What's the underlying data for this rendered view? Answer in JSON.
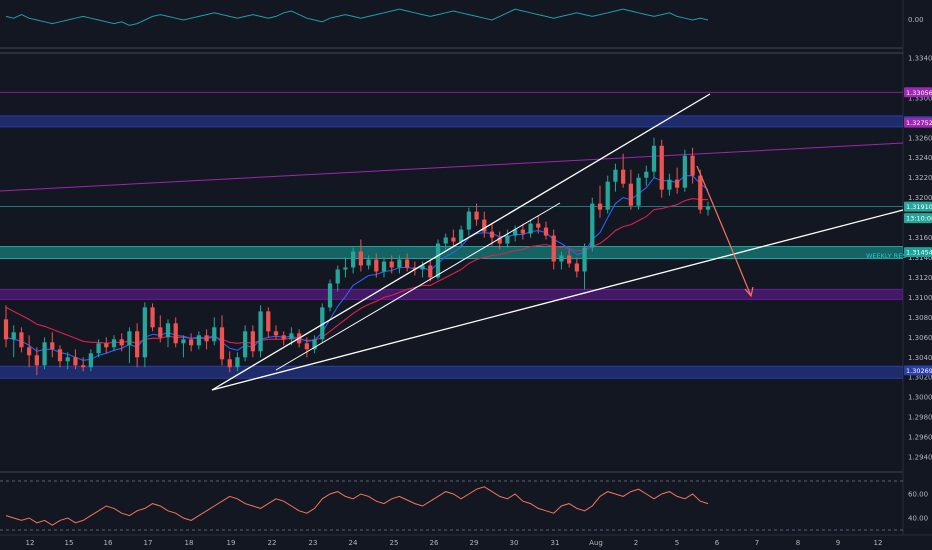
{
  "colors": {
    "background": "#131722",
    "grid": "#1e222d",
    "up": "#26a69a",
    "down": "#ef5350",
    "bluezone": "#2a3ea8",
    "purplezone": "#6a1b9a",
    "tealzone": "#1aa39a",
    "ema_fast": "#2962ff",
    "ema_slow": "#e0204a",
    "trendline": "#ffffff",
    "channel_purple": "#9c27b0",
    "arrow": "#f7725a",
    "price_tag": "#26a69a",
    "purple_tag": "#9c27b0",
    "blue_tag": "#2a3ea8",
    "oscillator_top": "#1e9fa8",
    "oscillator_bottom": "#f7725a"
  },
  "chart_data": {
    "type": "candlestick",
    "symbol": "GBPUSD",
    "ylim": [
      1.2925,
      1.335
    ],
    "price_axis_ticks": [
      "1.33400",
      "1.33000",
      "1.32600",
      "1.32400",
      "1.32200",
      "1.32000",
      "1.31600",
      "1.31400",
      "1.31200",
      "1.31000",
      "1.30800",
      "1.30600",
      "1.30400",
      "1.30200",
      "1.30000",
      "1.29800",
      "1.29600",
      "1.29400"
    ],
    "price_axis_values": [
      1.334,
      1.33,
      1.326,
      1.324,
      1.322,
      1.32,
      1.316,
      1.314,
      1.312,
      1.31,
      1.308,
      1.306,
      1.304,
      1.302,
      1.3,
      1.298,
      1.296,
      1.294
    ],
    "time_axis_labels": [
      "12",
      "15",
      "16",
      "17",
      "18",
      "19",
      "22",
      "23",
      "24",
      "25",
      "26",
      "29",
      "30",
      "31",
      "Aug",
      "2",
      "5",
      "6",
      "7",
      "8",
      "9",
      "12"
    ],
    "price_tags": [
      {
        "label": "1.33056",
        "value": 1.33056,
        "color": "#9c27b0"
      },
      {
        "label": "1.32767",
        "value": 1.32767,
        "color": "#2a3ea8"
      },
      {
        "label": "1.32752",
        "value": 1.32752,
        "color": "#9c27b0"
      },
      {
        "label": "1.31910",
        "value": 1.3191,
        "color": "#26a69a"
      },
      {
        "label": "13:10:06",
        "value": 1.31795,
        "color": "#26a69a"
      },
      {
        "label": "1.31454",
        "value": 1.31454,
        "color": "#1aa39a"
      },
      {
        "label": "1.30269",
        "value": 1.30269,
        "color": "#2a3ea8"
      }
    ],
    "zones": [
      {
        "name": "blue-resistance-zone",
        "from": 1.3273,
        "to": 1.328,
        "color": "#2a3ea8"
      },
      {
        "name": "weekly-res-zone",
        "from": 1.3141,
        "to": 1.3149,
        "color": "#1aa39a"
      },
      {
        "name": "purple-support-zone",
        "from": 1.31,
        "to": 1.3106,
        "color": "#6a1b9a"
      },
      {
        "name": "blue-support-zone",
        "from": 1.3021,
        "to": 1.3029,
        "color": "#2a3ea8"
      }
    ],
    "horizontal_lines": [
      {
        "name": "top-line",
        "value": 1.3345
      },
      {
        "name": "purple-level",
        "value": 1.33056
      },
      {
        "name": "current-price-line",
        "value": 1.3191
      }
    ],
    "annotations": [
      {
        "text": "WEEKLY RES",
        "value": 1.31454
      }
    ],
    "candles": [
      [
        1.3078,
        1.3092,
        1.305,
        1.3058
      ],
      [
        1.3058,
        1.3072,
        1.304,
        1.3065
      ],
      [
        1.3065,
        1.307,
        1.3045,
        1.305
      ],
      [
        1.305,
        1.3062,
        1.303,
        1.3042
      ],
      [
        1.3042,
        1.305,
        1.3022,
        1.3032
      ],
      [
        1.3032,
        1.306,
        1.3028,
        1.3055
      ],
      [
        1.3055,
        1.3065,
        1.304,
        1.3048
      ],
      [
        1.3048,
        1.3052,
        1.303,
        1.3036
      ],
      [
        1.3036,
        1.3045,
        1.3028,
        1.304
      ],
      [
        1.304,
        1.3048,
        1.3028,
        1.3032
      ],
      [
        1.3032,
        1.304,
        1.3026,
        1.303
      ],
      [
        1.303,
        1.3048,
        1.3026,
        1.3044
      ],
      [
        1.3044,
        1.3058,
        1.304,
        1.3054
      ],
      [
        1.3054,
        1.306,
        1.3044,
        1.305
      ],
      [
        1.305,
        1.3062,
        1.3046,
        1.3058
      ],
      [
        1.3058,
        1.3064,
        1.3046,
        1.3052
      ],
      [
        1.3052,
        1.307,
        1.3034,
        1.3066
      ],
      [
        1.3066,
        1.3074,
        1.303,
        1.304
      ],
      [
        1.304,
        1.3095,
        1.303,
        1.309
      ],
      [
        1.309,
        1.3094,
        1.3066,
        1.307
      ],
      [
        1.307,
        1.3082,
        1.3055,
        1.306
      ],
      [
        1.306,
        1.3078,
        1.305,
        1.3074
      ],
      [
        1.3074,
        1.308,
        1.305,
        1.3054
      ],
      [
        1.3054,
        1.3062,
        1.304,
        1.3058
      ],
      [
        1.3058,
        1.3064,
        1.3046,
        1.3052
      ],
      [
        1.3052,
        1.3066,
        1.3048,
        1.3062
      ],
      [
        1.3062,
        1.3068,
        1.3048,
        1.3056
      ],
      [
        1.3056,
        1.308,
        1.3052,
        1.307
      ],
      [
        1.307,
        1.3082,
        1.3032,
        1.3038
      ],
      [
        1.3038,
        1.3046,
        1.3025,
        1.303
      ],
      [
        1.303,
        1.3045,
        1.3026,
        1.304
      ],
      [
        1.304,
        1.3072,
        1.3036,
        1.3066
      ],
      [
        1.3066,
        1.3072,
        1.304,
        1.3046
      ],
      [
        1.3046,
        1.3092,
        1.304,
        1.3086
      ],
      [
        1.3086,
        1.309,
        1.306,
        1.3066
      ],
      [
        1.3066,
        1.3072,
        1.3058,
        1.3062
      ],
      [
        1.3062,
        1.3066,
        1.3052,
        1.3058
      ],
      [
        1.3058,
        1.307,
        1.3052,
        1.3064
      ],
      [
        1.3064,
        1.3068,
        1.305,
        1.3054
      ],
      [
        1.3054,
        1.306,
        1.304,
        1.3048
      ],
      [
        1.3048,
        1.3062,
        1.3044,
        1.3058
      ],
      [
        1.3058,
        1.3094,
        1.3054,
        1.309
      ],
      [
        1.309,
        1.3118,
        1.3086,
        1.3114
      ],
      [
        1.3114,
        1.3132,
        1.3106,
        1.3128
      ],
      [
        1.3128,
        1.314,
        1.312,
        1.313
      ],
      [
        1.313,
        1.315,
        1.3124,
        1.3146
      ],
      [
        1.3146,
        1.3158,
        1.3126,
        1.3132
      ],
      [
        1.3132,
        1.3142,
        1.3128,
        1.3138
      ],
      [
        1.3138,
        1.3144,
        1.312,
        1.3126
      ],
      [
        1.3126,
        1.314,
        1.312,
        1.3136
      ],
      [
        1.3136,
        1.3142,
        1.3124,
        1.313
      ],
      [
        1.313,
        1.3142,
        1.3124,
        1.3138
      ],
      [
        1.3138,
        1.3144,
        1.3126,
        1.313
      ],
      [
        1.313,
        1.3136,
        1.3122,
        1.3128
      ],
      [
        1.3128,
        1.3136,
        1.312,
        1.3132
      ],
      [
        1.3132,
        1.3138,
        1.3116,
        1.312
      ],
      [
        1.312,
        1.3158,
        1.3118,
        1.3154
      ],
      [
        1.3154,
        1.3164,
        1.3148,
        1.316
      ],
      [
        1.316,
        1.3168,
        1.315,
        1.3156
      ],
      [
        1.3156,
        1.3172,
        1.315,
        1.3168
      ],
      [
        1.3168,
        1.319,
        1.3162,
        1.3186
      ],
      [
        1.3186,
        1.3194,
        1.3172,
        1.3178
      ],
      [
        1.3178,
        1.3186,
        1.316,
        1.3166
      ],
      [
        1.3166,
        1.3174,
        1.3152,
        1.316
      ],
      [
        1.316,
        1.3166,
        1.3148,
        1.3154
      ],
      [
        1.3154,
        1.3168,
        1.315,
        1.3162
      ],
      [
        1.3162,
        1.3172,
        1.3156,
        1.3168
      ],
      [
        1.3168,
        1.3174,
        1.3158,
        1.3164
      ],
      [
        1.3164,
        1.3178,
        1.316,
        1.3174
      ],
      [
        1.3174,
        1.3182,
        1.3164,
        1.317
      ],
      [
        1.317,
        1.3176,
        1.3158,
        1.3162
      ],
      [
        1.3162,
        1.3168,
        1.3128,
        1.3136
      ],
      [
        1.3136,
        1.3146,
        1.3128,
        1.3142
      ],
      [
        1.3142,
        1.3148,
        1.313,
        1.3134
      ],
      [
        1.3134,
        1.314,
        1.312,
        1.3126
      ],
      [
        1.3126,
        1.3154,
        1.3108,
        1.315
      ],
      [
        1.315,
        1.32,
        1.3146,
        1.3194
      ],
      [
        1.3194,
        1.3212,
        1.318,
        1.3188
      ],
      [
        1.3188,
        1.3222,
        1.3184,
        1.3216
      ],
      [
        1.3216,
        1.3234,
        1.3206,
        1.3228
      ],
      [
        1.3228,
        1.3244,
        1.321,
        1.3214
      ],
      [
        1.3214,
        1.3228,
        1.3188,
        1.3192
      ],
      [
        1.3192,
        1.3224,
        1.3188,
        1.322
      ],
      [
        1.322,
        1.3232,
        1.3212,
        1.3226
      ],
      [
        1.3226,
        1.326,
        1.322,
        1.3252
      ],
      [
        1.3252,
        1.3258,
        1.32,
        1.3208
      ],
      [
        1.3208,
        1.3224,
        1.3202,
        1.3218
      ],
      [
        1.3218,
        1.323,
        1.3204,
        1.321
      ],
      [
        1.321,
        1.3248,
        1.3206,
        1.3242
      ],
      [
        1.3242,
        1.325,
        1.3214,
        1.3222
      ],
      [
        1.3222,
        1.3228,
        1.3184,
        1.3188
      ],
      [
        1.3188,
        1.3196,
        1.3182,
        1.3191
      ]
    ],
    "ema_fast": [
      1.306,
      1.3058,
      1.3056,
      1.3052,
      1.3046,
      1.3048,
      1.3048,
      1.3045,
      1.3043,
      1.304,
      1.3037,
      1.3038,
      1.3042,
      1.3044,
      1.3047,
      1.3049,
      1.3053,
      1.305,
      1.306,
      1.3063,
      1.3062,
      1.3065,
      1.3062,
      1.3061,
      1.3059,
      1.306,
      1.3059,
      1.3062,
      1.3055,
      1.3049,
      1.3047,
      1.3052,
      1.305,
      1.3058,
      1.306,
      1.3061,
      1.306,
      1.3061,
      1.3059,
      1.3056,
      1.3057,
      1.3065,
      1.3078,
      1.3091,
      1.3101,
      1.3112,
      1.3117,
      1.3122,
      1.3123,
      1.3126,
      1.3127,
      1.313,
      1.313,
      1.3129,
      1.313,
      1.3127,
      1.3134,
      1.3141,
      1.3145,
      1.3151,
      1.316,
      1.3164,
      1.3165,
      1.3164,
      1.3161,
      1.3161,
      1.3163,
      1.3163,
      1.3166,
      1.3167,
      1.3165,
      1.3158,
      1.3154,
      1.3149,
      1.3143,
      1.3145,
      1.3158,
      1.3165,
      1.318,
      1.3194,
      1.32,
      1.3198,
      1.3204,
      1.321,
      1.322,
      1.3217,
      1.3217,
      1.3215,
      1.3222,
      1.3222,
      1.3214,
      1.3208
    ],
    "ema_slow": [
      1.309,
      1.3086,
      1.3082,
      1.3078,
      1.3073,
      1.3071,
      1.3068,
      1.3065,
      1.3062,
      1.3059,
      1.3056,
      1.3055,
      1.3055,
      1.3054,
      1.3055,
      1.3055,
      1.3056,
      1.3054,
      1.3058,
      1.3059,
      1.3059,
      1.3061,
      1.306,
      1.306,
      1.3059,
      1.3059,
      1.3059,
      1.306,
      1.3058,
      1.3055,
      1.3054,
      1.3055,
      1.3054,
      1.3057,
      1.3058,
      1.3058,
      1.3058,
      1.3059,
      1.3058,
      1.3057,
      1.3057,
      1.306,
      1.3066,
      1.3072,
      1.3078,
      1.3084,
      1.3089,
      1.3093,
      1.3096,
      1.31,
      1.3102,
      1.3105,
      1.3108,
      1.311,
      1.3112,
      1.3112,
      1.3116,
      1.312,
      1.3124,
      1.3128,
      1.3134,
      1.3138,
      1.314,
      1.3142,
      1.3143,
      1.3145,
      1.3147,
      1.3148,
      1.3151,
      1.3152,
      1.3153,
      1.3151,
      1.315,
      1.3149,
      1.3147,
      1.3147,
      1.3151,
      1.3154,
      1.316,
      1.3167,
      1.3171,
      1.3173,
      1.3177,
      1.3181,
      1.3188,
      1.3189,
      1.3191,
      1.3193,
      1.3197,
      1.3199,
      1.3198,
      1.3198
    ],
    "oscillator_top": {
      "ticks": [
        "0.00"
      ],
      "values": [
        0.2,
        0.1,
        0.3,
        0.1,
        0.0,
        -0.1,
        -0.2,
        -0.1,
        0.0,
        0.1,
        0.2,
        0.1,
        0.0,
        -0.1,
        -0.2,
        -0.1,
        -0.3,
        -0.2,
        0.0,
        0.2,
        0.3,
        0.2,
        0.1,
        0.0,
        0.1,
        0.2,
        0.3,
        0.4,
        0.3,
        0.2,
        0.1,
        0.2,
        0.3,
        0.2,
        0.1,
        0.2,
        0.4,
        0.5,
        0.3,
        0.1,
        0.0,
        -0.1,
        0.1,
        0.2,
        0.3,
        0.2,
        0.1,
        0.2,
        0.3,
        0.4,
        0.5,
        0.6,
        0.5,
        0.4,
        0.3,
        0.2,
        0.3,
        0.4,
        0.5,
        0.4,
        0.3,
        0.2,
        0.1,
        0.0,
        0.2,
        0.4,
        0.6,
        0.5,
        0.4,
        0.3,
        0.2,
        0.1,
        0.2,
        0.3,
        0.4,
        0.3,
        0.2,
        0.3,
        0.4,
        0.5,
        0.6,
        0.5,
        0.4,
        0.3,
        0.2,
        0.3,
        0.4,
        0.2,
        0.1,
        0.0,
        0.1,
        0.0
      ]
    },
    "oscillator_bottom": {
      "ticks": [
        "60.00",
        "40.00"
      ],
      "tick_values": [
        60,
        40
      ],
      "values": [
        42,
        40,
        38,
        40,
        36,
        38,
        34,
        38,
        40,
        36,
        38,
        42,
        46,
        50,
        48,
        44,
        42,
        46,
        48,
        52,
        50,
        46,
        44,
        40,
        38,
        42,
        46,
        50,
        54,
        58,
        56,
        52,
        50,
        48,
        52,
        56,
        54,
        50,
        46,
        44,
        48,
        56,
        60,
        62,
        58,
        56,
        60,
        58,
        54,
        52,
        56,
        58,
        55,
        52,
        50,
        54,
        58,
        62,
        60,
        56,
        60,
        64,
        66,
        62,
        58,
        56,
        60,
        54,
        52,
        48,
        46,
        44,
        50,
        52,
        48,
        46,
        50,
        58,
        62,
        60,
        58,
        62,
        64,
        60,
        56,
        60,
        62,
        58,
        56,
        60,
        54,
        52
      ]
    }
  },
  "labels": {
    "weekly_res": "WEEKLY RES"
  }
}
